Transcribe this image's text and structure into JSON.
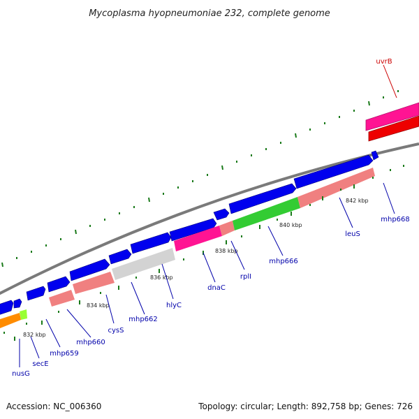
{
  "title": "Mycoplasma hyopneumoniae 232, complete genome",
  "footer": {
    "accession": "Accession: NC_006360",
    "summary": "Topology: circular; Length: 892,758 bp; Genes: 726"
  },
  "colors": {
    "forward_gene": "#0000ee",
    "reverse_gene": "#f08080",
    "label_blue": "#0000aa",
    "label_red": "#cc0000",
    "backbone": "#777777",
    "tick": "#1a7a1a"
  },
  "ticks": [
    "832 kbp",
    "834 kbp",
    "836 kbp",
    "838 kbp",
    "840 kbp",
    "842 kbp"
  ],
  "gene_labels": [
    "nusG",
    "secE",
    "mhp659",
    "mhp660",
    "cysS",
    "mhp662",
    "hlyC",
    "dnaC",
    "rplI",
    "mhp666",
    "leuS",
    "mhp668",
    "uvrB"
  ]
}
